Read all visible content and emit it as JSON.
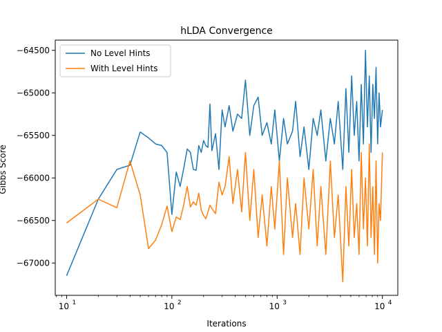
{
  "chart_data": {
    "type": "line",
    "title": "hLDA Convergence",
    "xlabel": "Iterations",
    "ylabel": "Gibbs Score",
    "xscale": "log",
    "xlim": [
      7.8,
      14000
    ],
    "ylim": [
      -67380,
      -64380
    ],
    "x_ticks": [
      {
        "value": 10,
        "base": "10",
        "exp": "1"
      },
      {
        "value": 100,
        "base": "10",
        "exp": "2"
      },
      {
        "value": 1000,
        "base": "10",
        "exp": "3"
      },
      {
        "value": 10000,
        "base": "10",
        "exp": "4"
      }
    ],
    "y_ticks": [
      {
        "value": -64500,
        "label": "−64500"
      },
      {
        "value": -65000,
        "label": "−65000"
      },
      {
        "value": -65500,
        "label": "−65500"
      },
      {
        "value": -66000,
        "label": "−66000"
      },
      {
        "value": -66500,
        "label": "−66500"
      },
      {
        "value": -67000,
        "label": "−67000"
      }
    ],
    "grid": false,
    "legend_position": "top-left",
    "series": [
      {
        "name": "No Level Hints",
        "color": "#1f77b4",
        "x": [
          10,
          20,
          30,
          40,
          50,
          60,
          70,
          80,
          90,
          100,
          110,
          120,
          130,
          140,
          150,
          160,
          170,
          180,
          190,
          200,
          210,
          220,
          230,
          240,
          260,
          280,
          300,
          320,
          350,
          380,
          420,
          460,
          500,
          550,
          600,
          660,
          720,
          800,
          880,
          950,
          1050,
          1150,
          1250,
          1400,
          1500,
          1650,
          1800,
          2000,
          2200,
          2400,
          2600,
          2900,
          3200,
          3500,
          3800,
          4200,
          4500,
          4800,
          5100,
          5400,
          5700,
          6000,
          6300,
          6600,
          6900,
          7200,
          7500,
          7800,
          8100,
          8400,
          8700,
          9000,
          9300,
          9600,
          10000
        ],
        "values": [
          -67150,
          -66250,
          -65900,
          -65850,
          -65460,
          -65530,
          -65600,
          -65620,
          -65700,
          -66430,
          -65930,
          -66100,
          -65880,
          -65660,
          -65700,
          -65900,
          -65910,
          -65620,
          -65700,
          -65560,
          -65620,
          -65640,
          -65130,
          -65680,
          -65480,
          -65900,
          -65200,
          -65400,
          -65150,
          -65450,
          -65250,
          -65300,
          -64850,
          -65500,
          -65150,
          -65050,
          -65500,
          -65350,
          -65600,
          -65200,
          -65800,
          -65300,
          -65600,
          -65450,
          -65100,
          -65750,
          -65400,
          -65900,
          -65300,
          -65500,
          -65200,
          -65800,
          -65300,
          -65600,
          -65100,
          -65900,
          -64950,
          -65700,
          -64800,
          -65500,
          -65100,
          -65800,
          -64900,
          -65600,
          -64500,
          -65400,
          -64800,
          -65700,
          -64900,
          -65300,
          -64700,
          -65600,
          -65000,
          -65400,
          -65200
        ]
      },
      {
        "name": "With Level Hints",
        "color": "#ff7f0e",
        "x": [
          10,
          20,
          30,
          40,
          50,
          60,
          70,
          80,
          90,
          100,
          110,
          120,
          130,
          140,
          150,
          160,
          170,
          180,
          190,
          200,
          210,
          220,
          230,
          240,
          260,
          280,
          300,
          320,
          350,
          380,
          420,
          460,
          500,
          550,
          600,
          660,
          720,
          800,
          880,
          950,
          1050,
          1150,
          1250,
          1400,
          1500,
          1650,
          1800,
          2000,
          2200,
          2400,
          2600,
          2900,
          3200,
          3500,
          3800,
          4200,
          4500,
          4800,
          5100,
          5400,
          5700,
          6000,
          6300,
          6600,
          6900,
          7200,
          7500,
          7800,
          8100,
          8400,
          8700,
          9000,
          9300,
          9600,
          10000
        ],
        "values": [
          -66530,
          -66250,
          -66350,
          -65800,
          -66200,
          -66830,
          -66730,
          -66550,
          -66330,
          -66630,
          -66460,
          -66490,
          -66310,
          -66100,
          -66340,
          -66280,
          -66320,
          -66180,
          -66380,
          -66440,
          -66480,
          -66400,
          -66320,
          -66360,
          -66420,
          -66050,
          -66200,
          -66100,
          -65750,
          -66300,
          -65900,
          -66400,
          -65700,
          -66500,
          -65900,
          -66700,
          -66200,
          -66800,
          -66100,
          -66600,
          -65800,
          -66900,
          -66000,
          -66700,
          -66300,
          -66900,
          -66000,
          -66600,
          -65900,
          -66800,
          -66100,
          -66900,
          -65800,
          -66700,
          -66200,
          -67220,
          -66100,
          -66800,
          -65900,
          -66700,
          -66300,
          -66900,
          -65700,
          -66600,
          -66000,
          -66800,
          -65600,
          -66700,
          -66100,
          -66900,
          -65800,
          -67000,
          -66300,
          -66500,
          -65700
        ]
      }
    ]
  }
}
